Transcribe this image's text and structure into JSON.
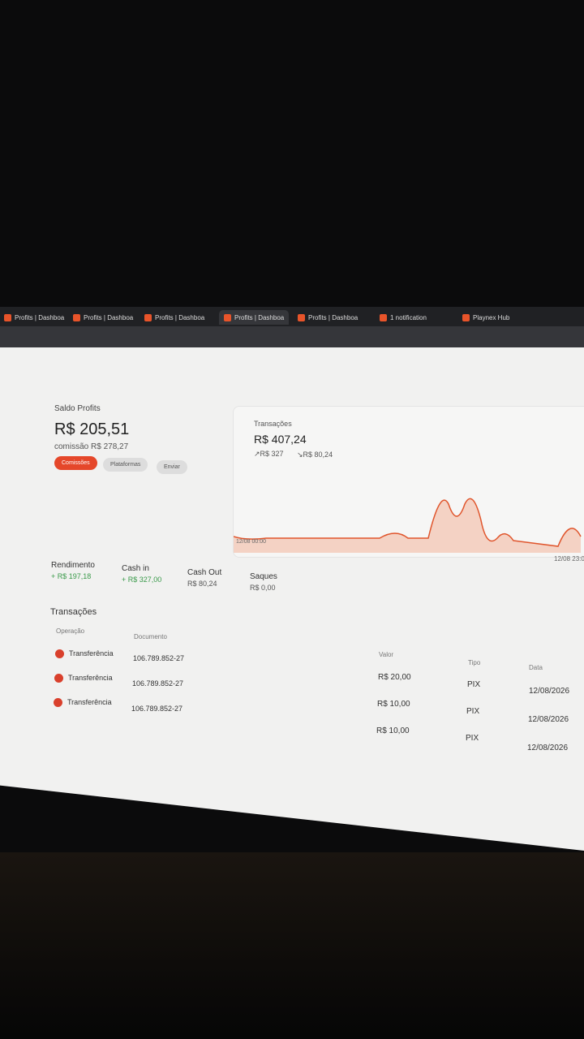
{
  "browser": {
    "tabs": [
      "Profits | Dashboa",
      "Profits | Dashboa",
      "Profits | Dashboa",
      "Profits | Dashboa",
      "Profits | Dashboa",
      "1 notification",
      "Playnex Hub"
    ]
  },
  "balance": {
    "label": "Saldo Profits",
    "value": "R$ 205,51",
    "commission": "comissão R$ 278,27",
    "buttons": [
      "Comissões",
      "Plataformas",
      "Enviar"
    ]
  },
  "summary": {
    "title": "Transações",
    "total": "R$ 407,24",
    "cash_in": "↗R$ 327",
    "cash_out": "↘R$ 80,24",
    "start": "12/08 00:00",
    "end": "12/08 23:0"
  },
  "stats": [
    {
      "label": "Rendimento",
      "value": "+ R$ 197,18"
    },
    {
      "label": "Cash in",
      "value": "+ R$ 327,00"
    },
    {
      "label": "Cash Out",
      "value": "R$ 80,24"
    },
    {
      "label": "Saques",
      "value": "R$ 0,00"
    }
  ],
  "table": {
    "title": "Transações",
    "headers": [
      "Operação",
      "Documento",
      "Valor",
      "Tipo",
      "Data"
    ],
    "rows": [
      [
        "Transferência",
        "106.789.852-27",
        "R$ 20,00",
        "PIX",
        "12/08/2026"
      ],
      [
        "Transferência",
        "106.789.852-27",
        "R$ 10,00",
        "PIX",
        "12/08/2026"
      ],
      [
        "Transferência",
        "106.789.852-27",
        "R$ 10,00",
        "PIX",
        "12/08/2026"
      ]
    ]
  }
}
